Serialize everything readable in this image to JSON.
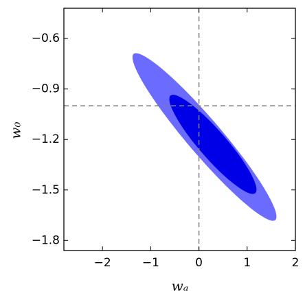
{
  "chart_data": {
    "type": "ellipse",
    "xlabel": "wₐ",
    "ylabel": "w₀",
    "xlim": [
      -2.8,
      2
    ],
    "ylim": [
      -1.86,
      -0.42
    ],
    "xticks": [
      {
        "value": -2,
        "label": "−2"
      },
      {
        "value": -1,
        "label": "−1"
      },
      0,
      1,
      2
    ],
    "yticks": [
      {
        "value": -0.6,
        "label": "−0.6"
      },
      {
        "value": -0.9,
        "label": "−0.9"
      },
      {
        "value": -1.2,
        "label": "−1.2"
      },
      {
        "value": -1.5,
        "label": "−1.5"
      },
      {
        "value": -1.8,
        "label": "−1.8"
      }
    ],
    "reference_lines": {
      "x": 0,
      "y": -1,
      "color": "#808080"
    },
    "series": [
      {
        "color": "#6b6bff",
        "x": [
          1.583,
          1.366,
          0.959,
          0.423,
          -0.16,
          -0.701,
          -1.117,
          -1.346,
          -1.353,
          -1.136,
          -0.729,
          -0.193,
          0.39,
          0.931,
          1.347,
          1.576
        ],
        "y": [
          -1.679,
          -1.666,
          -1.581,
          -1.435,
          -1.251,
          -1.057,
          -0.883,
          -0.754,
          -0.691,
          -0.704,
          -0.789,
          -0.935,
          -1.119,
          -1.313,
          -1.487,
          -1.616
        ]
      },
      {
        "color": "#0000e6",
        "x": [
          1.168,
          1.018,
          0.758,
          0.425,
          0.073,
          -0.247,
          -0.484,
          -0.604,
          -0.588,
          -0.438,
          -0.178,
          0.155,
          0.507,
          0.827,
          1.064,
          1.184
        ],
        "y": [
          -1.519,
          -1.517,
          -1.471,
          -1.389,
          -1.282,
          -1.167,
          -1.061,
          -0.981,
          -0.939,
          -0.941,
          -0.987,
          -1.069,
          -1.176,
          -1.291,
          -1.397,
          -1.477
        ]
      }
    ]
  }
}
